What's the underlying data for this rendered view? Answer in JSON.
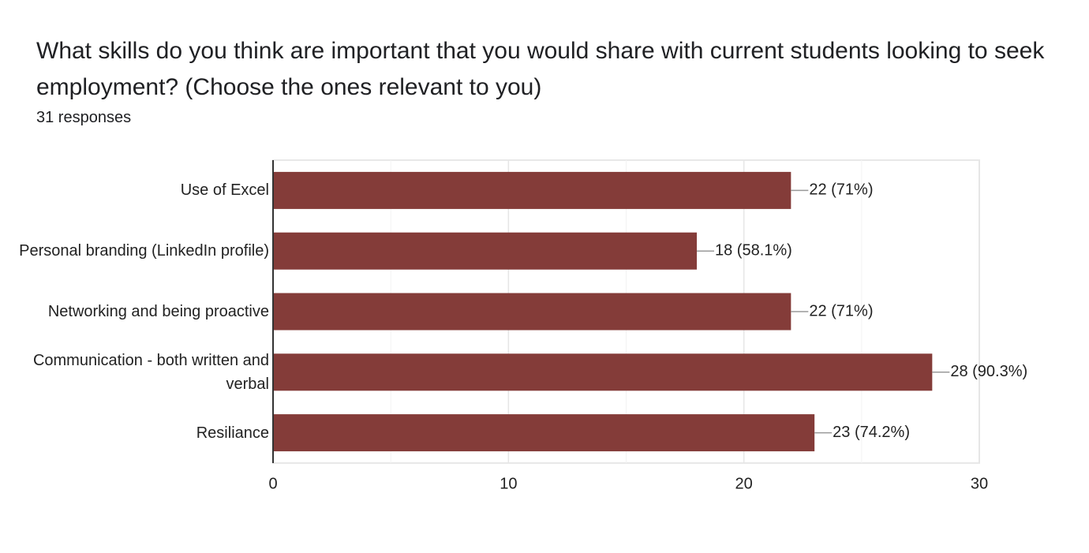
{
  "chart_data": {
    "type": "bar",
    "orientation": "horizontal",
    "title": "What skills do you think are important that you would share with current students looking to seek employment? (Choose the ones relevant to you)",
    "subtitle": "31 responses",
    "categories": [
      "Use of Excel",
      "Personal branding (LinkedIn profile)",
      "Networking and being proactive",
      "Communication - both written and verbal",
      "Resiliance"
    ],
    "values": [
      22,
      18,
      22,
      28,
      23
    ],
    "value_labels": [
      "22 (71%)",
      "18 (58.1%)",
      "22 (71%)",
      "28 (90.3%)",
      "23 (74.2%)"
    ],
    "color": "#843c39",
    "xlim": [
      0,
      30
    ],
    "xticks": [
      0,
      10,
      20,
      30
    ],
    "minor_xticks": [
      5,
      15,
      25
    ],
    "grid": true
  }
}
